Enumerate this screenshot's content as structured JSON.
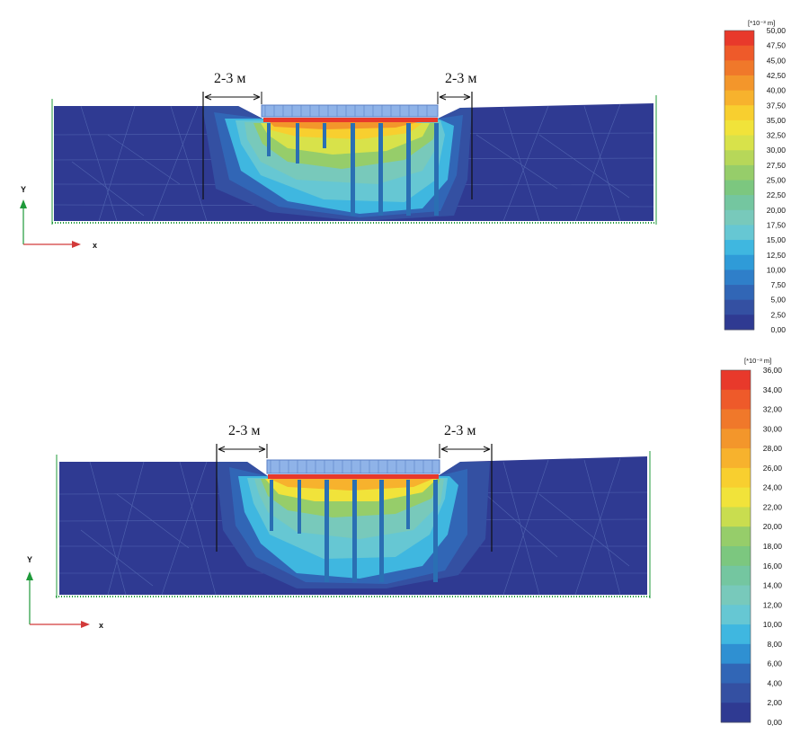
{
  "colors": {
    "soil_base": "#2f3a92",
    "mesh": "#6c86c8",
    "pile": "#2a6fb3",
    "arrow_x": "#d23a3a",
    "arrow_y": "#1f9a3a"
  },
  "panels": [
    {
      "dimension_left": "2-3 м",
      "dimension_right": "2-3 м",
      "axis_y": "Y",
      "axis_x": "x",
      "legend": {
        "unit": "[*10⁻³ m]",
        "ticks": [
          "50,00",
          "47,50",
          "45,00",
          "42,50",
          "40,00",
          "37,50",
          "35,00",
          "32,50",
          "30,00",
          "27,50",
          "25,00",
          "22,50",
          "20,00",
          "17,50",
          "15,00",
          "12,50",
          "10,00",
          "7,50",
          "5,00",
          "2,50",
          "0,00"
        ],
        "colors": [
          "#e8392b",
          "#ee5a2a",
          "#f0782a",
          "#f3962b",
          "#f7b22d",
          "#f8cf2f",
          "#f1e33a",
          "#d8e24a",
          "#b7d759",
          "#96cd6a",
          "#7cc77f",
          "#74c6a0",
          "#78c9bb",
          "#66c7d3",
          "#3fb7e0",
          "#2f9bd8",
          "#2f7fc9",
          "#3166b6",
          "#3450a2",
          "#2f3a92"
        ]
      }
    },
    {
      "dimension_left": "2-3 м",
      "dimension_right": "2-3 м",
      "axis_y": "Y",
      "axis_x": "x",
      "legend": {
        "unit": "[*10⁻³ m]",
        "ticks": [
          "36,00",
          "34,00",
          "32,00",
          "30,00",
          "28,00",
          "26,00",
          "24,00",
          "22,00",
          "20,00",
          "18,00",
          "16,00",
          "14,00",
          "12,00",
          "10,00",
          "8,00",
          "6,00",
          "4,00",
          "2,00",
          "0,00"
        ],
        "colors": [
          "#e8392b",
          "#ee5a2a",
          "#f0782a",
          "#f3962b",
          "#f7b22d",
          "#f8cf2f",
          "#f1e33a",
          "#c9dd4f",
          "#96cd6a",
          "#7cc77f",
          "#74c6a0",
          "#78c9bb",
          "#66c7d3",
          "#3fb7e0",
          "#2f90d2",
          "#3166b6",
          "#3450a2",
          "#2f3a92"
        ]
      }
    }
  ]
}
